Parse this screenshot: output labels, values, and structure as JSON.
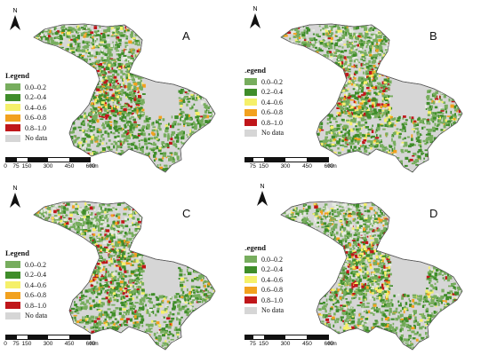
{
  "panels": [
    {
      "letter": "A",
      "north": "N",
      "legend_title": "Legend"
    },
    {
      "letter": "B",
      "north": "N",
      "legend_title": "Legend"
    },
    {
      "letter": "C",
      "north": "N",
      "legend_title": "Legend"
    },
    {
      "letter": "D",
      "north": "N",
      "legend_title": "Legend"
    }
  ],
  "legend_items": [
    {
      "label": "0.0–0.2",
      "color": "#77ad5e"
    },
    {
      "label": "0.2–0.4",
      "color": "#3f8d2a"
    },
    {
      "label": "0.4–0.6",
      "color": "#f5f06a"
    },
    {
      "label": "0.6–0.8",
      "color": "#f2a11e"
    },
    {
      "label": "0.8–1.0",
      "color": "#c0161a"
    },
    {
      "label": "No data",
      "color": "#d6d6d6"
    }
  ],
  "scale": {
    "ticks": [
      "0",
      "75",
      "150",
      "300",
      "450",
      "600"
    ],
    "unit": "Km"
  },
  "colors": {
    "no_data_fill": "#d6d6d6",
    "light_green": "#77ad5e",
    "dark_green": "#3f8d2a",
    "yellow": "#f5f06a",
    "orange": "#f2a11e",
    "red": "#c0161a",
    "pale_stipple": "#e6ebe0"
  }
}
